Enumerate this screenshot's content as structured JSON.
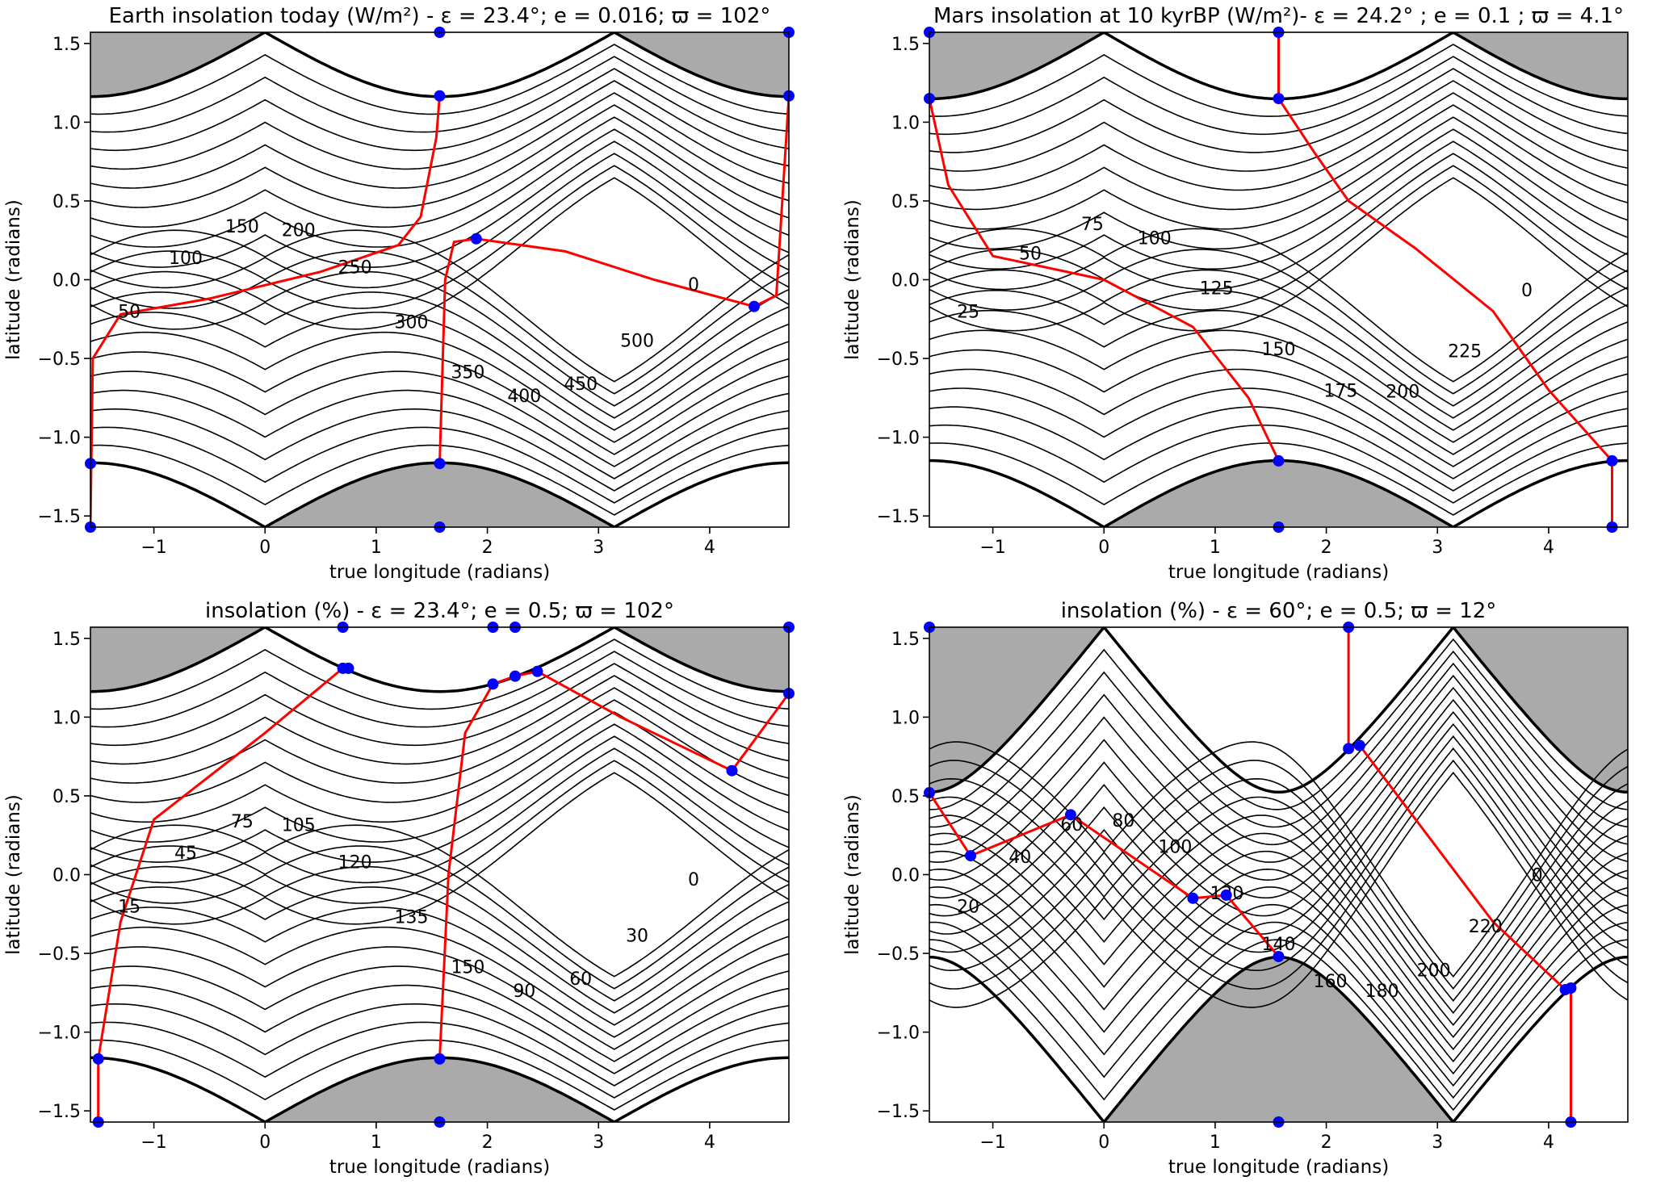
{
  "chart_data": [
    {
      "type": "contour",
      "title": "Earth insolation today (W/m²) - ε = 23.4°; e = 0.016; ϖ = 102°",
      "xlabel": "true longitude (radians)",
      "ylabel": "latitude (radians)",
      "xlim": [
        -1.5708,
        4.7124
      ],
      "ylim": [
        -1.5708,
        1.5708
      ],
      "xticks": [
        -1,
        0,
        1,
        2,
        3,
        4
      ],
      "yticks": [
        -1.5,
        -1.0,
        -0.5,
        0.0,
        0.5,
        1.0,
        1.5
      ],
      "polar_night_boundary": {
        "obliquity_deg": 23.4,
        "center": 1.5708
      },
      "contour_labels": [
        "50",
        "100",
        "150",
        "200",
        "250",
        "300",
        "350",
        "400",
        "450",
        "500",
        "0"
      ],
      "red_path": [
        [
          -1.5708,
          -1.5708
        ],
        [
          -1.55,
          -0.5
        ],
        [
          -1.3,
          -0.22
        ],
        [
          -0.5,
          -0.12
        ],
        [
          0.5,
          0.05
        ],
        [
          1.2,
          0.22
        ],
        [
          1.4,
          0.4
        ],
        [
          1.54,
          0.9
        ],
        [
          1.5708,
          1.1669
        ]
      ],
      "red_path_2": [
        [
          1.5708,
          -1.1669
        ],
        [
          1.62,
          0.0
        ],
        [
          1.7,
          0.24
        ],
        [
          1.9,
          0.26
        ],
        [
          2.7,
          0.18
        ],
        [
          3.5,
          0.0
        ],
        [
          4.4,
          -0.17
        ],
        [
          4.6,
          -0.1
        ],
        [
          4.7124,
          1.1669
        ]
      ],
      "markers": [
        [
          1.5708,
          1.5708
        ],
        [
          1.5708,
          1.1669
        ],
        [
          4.7124,
          1.5708
        ],
        [
          4.7124,
          1.1669
        ],
        [
          1.9,
          0.26
        ],
        [
          4.4,
          -0.17
        ],
        [
          -1.5708,
          -1.1669
        ],
        [
          1.5708,
          -1.1669
        ],
        [
          1.5708,
          -1.5708
        ],
        [
          -1.5708,
          -1.5708
        ]
      ]
    },
    {
      "type": "contour",
      "title": "Mars insolation at 10 kyrBP (W/m²)- ε = 24.2° ; e = 0.1 ; ϖ = 4.1°",
      "xlabel": "true longitude (radians)",
      "ylabel": "latitude (radians)",
      "xlim": [
        -1.5708,
        4.7124
      ],
      "ylim": [
        -1.5708,
        1.5708
      ],
      "xticks": [
        -1,
        0,
        1,
        2,
        3,
        4
      ],
      "yticks": [
        -1.5,
        -1.0,
        -0.5,
        0.0,
        0.5,
        1.0,
        1.5
      ],
      "polar_night_boundary": {
        "obliquity_deg": 24.2,
        "center": 1.5708
      },
      "contour_labels": [
        "25",
        "50",
        "75",
        "100",
        "125",
        "150",
        "175",
        "200",
        "225",
        "0"
      ],
      "red_path": [
        [
          -1.5708,
          1.15
        ],
        [
          -1.4,
          0.6
        ],
        [
          -1.0,
          0.15
        ],
        [
          0.0,
          0.0
        ],
        [
          0.8,
          -0.3
        ],
        [
          1.3,
          -0.75
        ],
        [
          1.5708,
          -1.15
        ]
      ],
      "red_path_2": [
        [
          1.5708,
          1.5708
        ],
        [
          1.5708,
          1.15
        ],
        [
          1.9,
          0.8
        ],
        [
          2.2,
          0.5
        ],
        [
          2.8,
          0.2
        ],
        [
          3.5,
          -0.2
        ],
        [
          4.0,
          -0.7
        ],
        [
          4.5708,
          -1.15
        ],
        [
          4.5708,
          -1.5708
        ]
      ],
      "markers": [
        [
          -1.5708,
          1.5708
        ],
        [
          1.5708,
          1.5708
        ],
        [
          -1.5708,
          1.15
        ],
        [
          1.5708,
          1.15
        ],
        [
          1.5708,
          -1.15
        ],
        [
          4.5708,
          -1.15
        ],
        [
          4.5708,
          -1.5708
        ],
        [
          1.5708,
          -1.5708
        ]
      ]
    },
    {
      "type": "contour",
      "title": "insolation (%) - ε = 23.4°; e = 0.5; ϖ = 102°",
      "xlabel": "true longitude (radians)",
      "ylabel": "latitude (radians)",
      "xlim": [
        -1.5708,
        4.7124
      ],
      "ylim": [
        -1.5708,
        1.5708
      ],
      "xticks": [
        -1,
        0,
        1,
        2,
        3,
        4
      ],
      "yticks": [
        -1.5,
        -1.0,
        -0.5,
        0.0,
        0.5,
        1.0,
        1.5
      ],
      "polar_night_boundary": {
        "obliquity_deg": 23.4,
        "center": 1.5708
      },
      "contour_labels": [
        "15",
        "45",
        "75",
        "105",
        "120",
        "135",
        "150",
        "90",
        "60",
        "30",
        "0"
      ],
      "red_path": [
        [
          -1.5,
          -1.5708
        ],
        [
          -1.5,
          -1.17
        ],
        [
          -1.3,
          -0.3
        ],
        [
          -1.0,
          0.35
        ],
        [
          0.0,
          0.9
        ],
        [
          0.7,
          1.31
        ]
      ],
      "red_path_2": [
        [
          1.5708,
          -1.17
        ],
        [
          1.65,
          0.0
        ],
        [
          1.8,
          0.9
        ],
        [
          2.05,
          1.21
        ],
        [
          2.25,
          1.26
        ],
        [
          2.45,
          1.29
        ],
        [
          3.2,
          1.0
        ],
        [
          4.2,
          0.66
        ],
        [
          4.7124,
          1.15
        ]
      ],
      "markers": [
        [
          0.7,
          1.5708
        ],
        [
          0.7,
          1.31
        ],
        [
          0.75,
          1.31
        ],
        [
          2.05,
          1.5708
        ],
        [
          2.25,
          1.5708
        ],
        [
          2.05,
          1.21
        ],
        [
          2.25,
          1.26
        ],
        [
          2.45,
          1.29
        ],
        [
          4.2,
          0.66
        ],
        [
          4.7124,
          1.15
        ],
        [
          4.7124,
          1.5708
        ],
        [
          -1.5,
          -1.17
        ],
        [
          1.5708,
          -1.17
        ],
        [
          1.5708,
          -1.5708
        ],
        [
          -1.5,
          -1.5708
        ]
      ]
    },
    {
      "type": "contour",
      "title": "insolation (%) - ε = 60°; e = 0.5; ϖ = 12°",
      "xlabel": "true longitude (radians)",
      "ylabel": "latitude (radians)",
      "xlim": [
        -1.5708,
        4.7124
      ],
      "ylim": [
        -1.5708,
        1.5708
      ],
      "xticks": [
        -1,
        0,
        1,
        2,
        3,
        4
      ],
      "yticks": [
        -1.5,
        -1.0,
        -0.5,
        0.0,
        0.5,
        1.0,
        1.5
      ],
      "polar_night_boundary": {
        "obliquity_deg": 60,
        "center": 1.5708
      },
      "contour_labels": [
        "20",
        "40",
        "60",
        "80",
        "100",
        "120",
        "140",
        "160",
        "180",
        "200",
        "220",
        "0"
      ],
      "red_path": [
        [
          -1.5708,
          0.52
        ],
        [
          -1.2,
          0.12
        ],
        [
          -0.3,
          0.38
        ],
        [
          0.8,
          -0.15
        ],
        [
          1.1,
          -0.13
        ],
        [
          1.5708,
          -0.52
        ]
      ],
      "red_path_2": [
        [
          2.2,
          1.5708
        ],
        [
          2.2,
          0.8
        ],
        [
          2.3,
          0.82
        ],
        [
          3.5,
          -0.3
        ],
        [
          4.15,
          -0.73
        ],
        [
          4.2,
          -0.72
        ],
        [
          4.2,
          -1.5708
        ]
      ],
      "markers": [
        [
          -1.5708,
          1.5708
        ],
        [
          2.2,
          1.5708
        ],
        [
          2.2,
          0.8
        ],
        [
          2.3,
          0.82
        ],
        [
          -1.5708,
          0.52
        ],
        [
          -1.2,
          0.12
        ],
        [
          -0.3,
          0.38
        ],
        [
          0.8,
          -0.15
        ],
        [
          1.1,
          -0.13
        ],
        [
          1.5708,
          -0.52
        ],
        [
          4.15,
          -0.73
        ],
        [
          4.2,
          -0.72
        ],
        [
          1.5708,
          -1.5708
        ],
        [
          4.2,
          -1.5708
        ]
      ]
    }
  ]
}
